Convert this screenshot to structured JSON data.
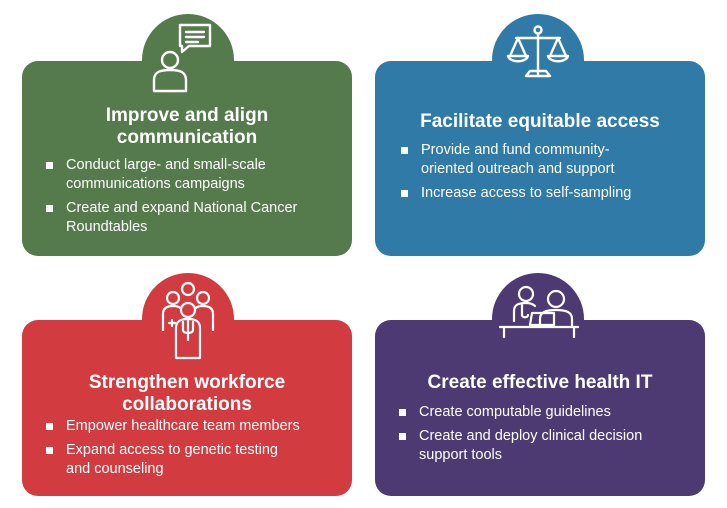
{
  "colors": {
    "green": "#557A4C",
    "blue": "#2F7AA6",
    "red": "#D23B3F",
    "purple": "#4E3A73",
    "text": "#FFFFFF"
  },
  "cards": [
    {
      "icon": "person-speech-bubble-icon",
      "title": "Improve and align communication",
      "title_lines": [
        "Improve and align",
        "communication"
      ],
      "bullets": [
        {
          "lines": [
            "Conduct large- and small-scale",
            "communications campaigns"
          ]
        },
        {
          "lines": [
            "Create and expand National Cancer",
            "Roundtables"
          ]
        }
      ]
    },
    {
      "icon": "scales-of-justice-icon",
      "title": "Facilitate equitable access",
      "title_lines": [
        "Facilitate equitable access"
      ],
      "bullets": [
        {
          "lines": [
            "Provide and fund community-",
            "oriented outreach and support"
          ]
        },
        {
          "lines": [
            "Increase access to self-sampling"
          ]
        }
      ]
    },
    {
      "icon": "healthcare-team-icon",
      "title": "Strengthen workforce collaborations",
      "title_lines": [
        "Strengthen workforce",
        "collaborations"
      ],
      "bullets": [
        {
          "lines": [
            "Empower healthcare team members"
          ]
        },
        {
          "lines": [
            "Expand access to genetic testing",
            "and counseling"
          ]
        }
      ]
    },
    {
      "icon": "doctor-patient-computer-icon",
      "title": "Create effective health IT",
      "title_lines": [
        "Create effective health IT"
      ],
      "bullets": [
        {
          "lines": [
            "Create computable guidelines"
          ]
        },
        {
          "lines": [
            "Create and deploy clinical decision",
            "support tools"
          ]
        }
      ]
    }
  ]
}
